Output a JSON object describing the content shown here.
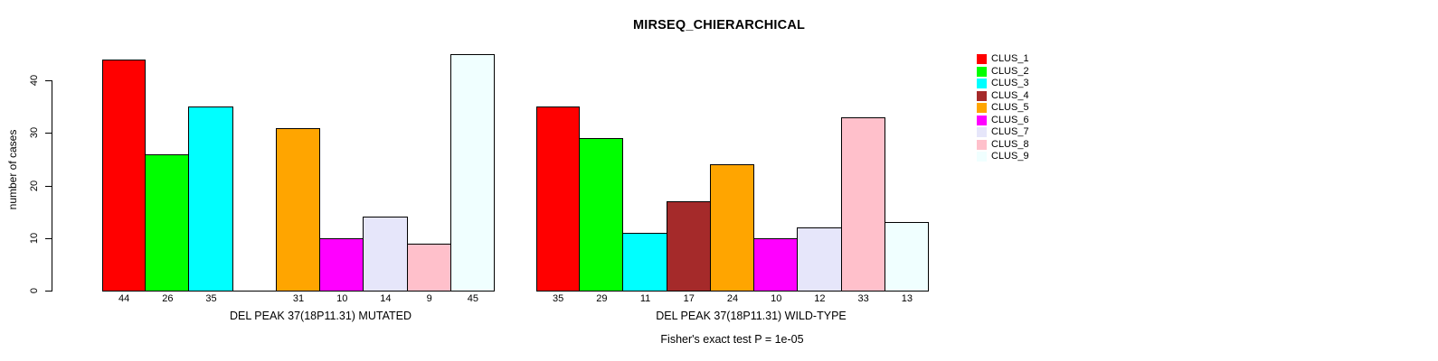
{
  "chart_data": {
    "type": "bar",
    "title": "MIRSEQ_CHIERARCHICAL",
    "ylabel": "number of cases",
    "ylim": [
      0,
      45
    ],
    "yticks": [
      0,
      10,
      20,
      30,
      40
    ],
    "grid": false,
    "legend_position": "right-outside",
    "clusters": [
      {
        "name": "CLUS_1",
        "color": "#FF0000"
      },
      {
        "name": "CLUS_2",
        "color": "#00FF00"
      },
      {
        "name": "CLUS_3",
        "color": "#00FFFF"
      },
      {
        "name": "CLUS_4",
        "color": "#A52A2A"
      },
      {
        "name": "CLUS_5",
        "color": "#FFA500"
      },
      {
        "name": "CLUS_6",
        "color": "#FF00FF"
      },
      {
        "name": "CLUS_7",
        "color": "#E6E6FA"
      },
      {
        "name": "CLUS_8",
        "color": "#FFC0CB"
      },
      {
        "name": "CLUS_9",
        "color": "#F0FFFF"
      }
    ],
    "panels": [
      {
        "xlabel": "DEL PEAK 37(18P11.31) MUTATED",
        "values": [
          44,
          26,
          35,
          null,
          31,
          10,
          14,
          9,
          45
        ]
      },
      {
        "xlabel": "DEL PEAK 37(18P11.31) WILD-TYPE",
        "values": [
          35,
          29,
          11,
          17,
          24,
          10,
          12,
          33,
          13
        ]
      }
    ],
    "caption": "Fisher's exact test P = 1e-05",
    "bar_border_color": "#000000",
    "axis_color": "#000000"
  }
}
